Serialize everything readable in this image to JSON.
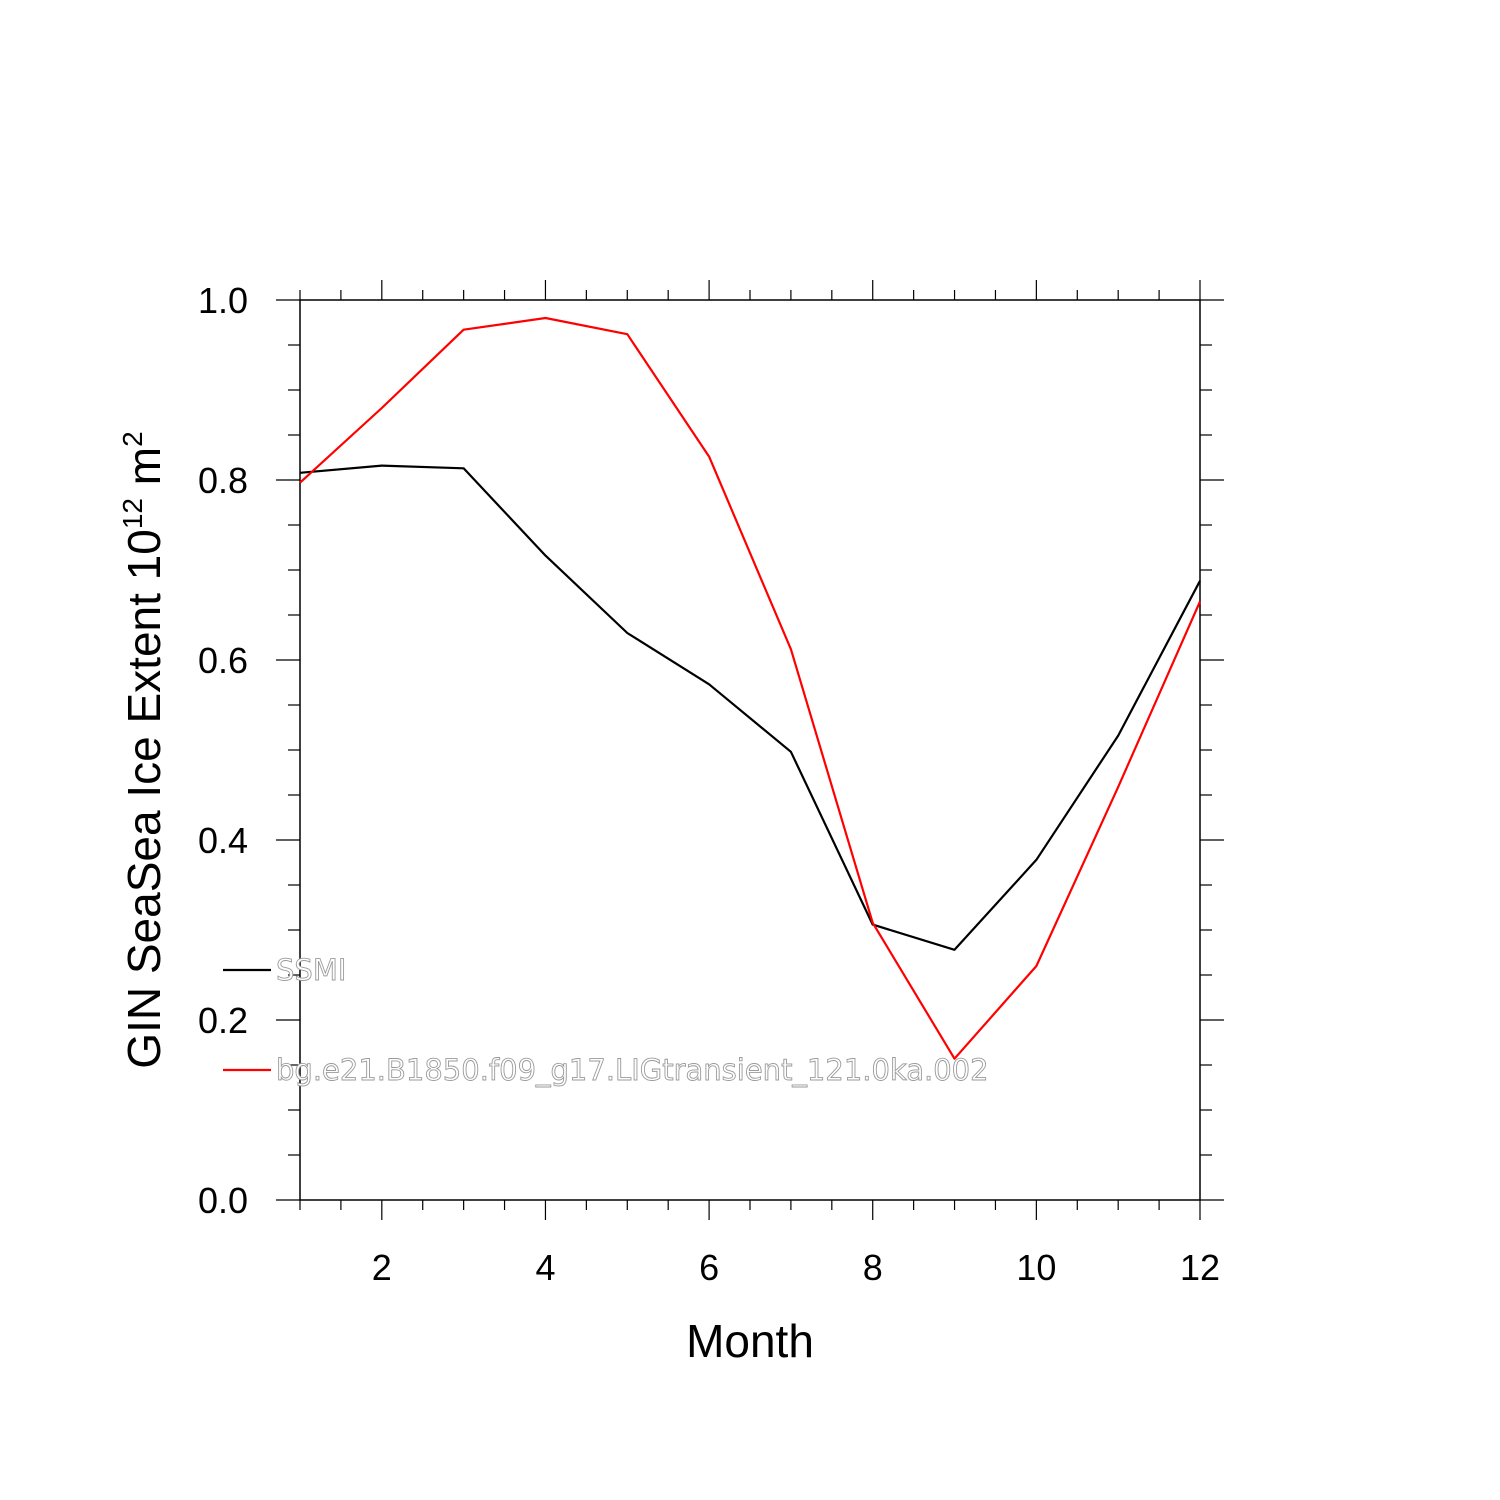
{
  "chart_data": {
    "type": "line",
    "xlabel": "Month",
    "ylabel_main": "GIN SeaSea Ice Extent 10",
    "ylabel_sup": "12",
    "ylabel_unit": " m",
    "ylabel_unit_sup": "2",
    "xlim": [
      1,
      12
    ],
    "ylim": [
      0,
      1
    ],
    "x_ticks": [
      2,
      4,
      6,
      8,
      10,
      12
    ],
    "y_ticks": [
      0.0,
      0.2,
      0.4,
      0.6,
      0.8,
      1.0
    ],
    "y_tick_labels": [
      "0.0",
      "0.2",
      "0.4",
      "0.6",
      "0.8",
      "1.0"
    ],
    "grid": false,
    "legend_placement": "lower-left inside plot",
    "x": [
      1,
      2,
      3,
      4,
      5,
      6,
      7,
      8,
      9,
      10,
      11,
      12
    ],
    "series": [
      {
        "name": "SSMI",
        "color": "#000000",
        "values": [
          0.808,
          0.816,
          0.813,
          0.716,
          0.63,
          0.573,
          0.498,
          0.306,
          0.278,
          0.378,
          0.516,
          0.688
        ]
      },
      {
        "name": "bg.e21.B1850.f09_g17.LIGtransient_121.0ka.002",
        "color": "#ff0000",
        "values": [
          0.797,
          0.88,
          0.967,
          0.98,
          0.962,
          0.826,
          0.612,
          0.308,
          0.157,
          0.26,
          0.459,
          0.665
        ]
      }
    ]
  }
}
